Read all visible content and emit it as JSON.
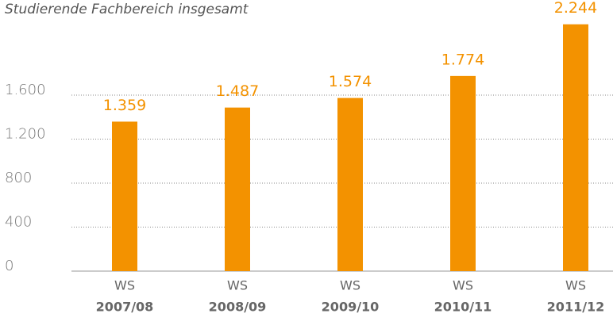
{
  "chart_data": {
    "type": "bar",
    "title": "Studierende Fachbereich insgesamt",
    "categories": [
      {
        "prefix": "WS",
        "year": "2007/08"
      },
      {
        "prefix": "WS",
        "year": "2008/09"
      },
      {
        "prefix": "WS",
        "year": "2009/10"
      },
      {
        "prefix": "WS",
        "year": "2010/11"
      },
      {
        "prefix": "WS",
        "year": "2011/12"
      }
    ],
    "values": [
      1359,
      1487,
      1574,
      1774,
      2244
    ],
    "value_labels": [
      "1.359",
      "1.487",
      "1.574",
      "1.774",
      "2.244"
    ],
    "color": "#f39200",
    "ylim": [
      0,
      2400
    ],
    "yticks": [
      0,
      400,
      800,
      {
        "value": 1200,
        "label": "1.200"
      },
      {
        "value": 1600,
        "label": "1.600"
      }
    ],
    "grid": true
  }
}
